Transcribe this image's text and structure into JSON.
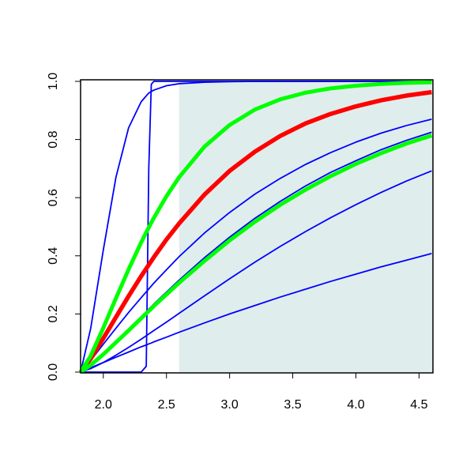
{
  "chart_data": {
    "type": "line",
    "x": [
      1.82,
      1.9,
      2.0,
      2.1,
      2.2,
      2.3,
      2.34,
      2.36,
      2.38,
      2.4,
      2.5,
      2.6,
      2.8,
      3.0,
      3.2,
      3.4,
      3.6,
      3.8,
      4.0,
      4.2,
      4.4,
      4.6
    ],
    "xlim": [
      1.82,
      4.61
    ],
    "ylim": [
      0,
      1
    ],
    "xticks": [
      {
        "value": 2.0,
        "label": "2.0"
      },
      2.5,
      {
        "value": 3.0,
        "label": "3.0"
      },
      3.5,
      {
        "value": 4.0,
        "label": "4.0"
      },
      4.5
    ],
    "yticks": [
      {
        "value": 0,
        "label": "0.0"
      },
      0.2,
      0.4,
      0.6,
      0.8,
      {
        "value": 1,
        "label": "1.0"
      }
    ],
    "shade_from": 2.6,
    "shade_color": "#e0eded",
    "series": [
      {
        "color": "#0000ff",
        "width": 1.8,
        "values": [
          0,
          0,
          0,
          0,
          0,
          0,
          0.02,
          0.7,
          0.99,
          1,
          1,
          1,
          1,
          1,
          1,
          1,
          1,
          1,
          1,
          1,
          1,
          1
        ]
      },
      {
        "color": "#0000ff",
        "width": 1.8,
        "values": [
          0,
          0.15,
          0.42,
          0.67,
          0.84,
          0.93,
          0.95,
          0.96,
          0.965,
          0.97,
          0.985,
          0.992,
          0.997,
          0.999,
          1,
          1,
          1,
          1,
          1,
          1,
          1,
          1
        ]
      },
      {
        "color": "#0000ff",
        "width": 1.8,
        "values": [
          0,
          0.04,
          0.096,
          0.151,
          0.205,
          0.256,
          0.276,
          0.286,
          0.296,
          0.306,
          0.352,
          0.397,
          0.478,
          0.549,
          0.612,
          0.666,
          0.714,
          0.755,
          0.791,
          0.822,
          0.848,
          0.87
        ]
      },
      {
        "color": "#0000ff",
        "width": 1.8,
        "values": [
          0,
          0.024,
          0.063,
          0.105,
          0.148,
          0.191,
          0.208,
          0.217,
          0.225,
          0.234,
          0.275,
          0.316,
          0.393,
          0.464,
          0.529,
          0.587,
          0.64,
          0.687,
          0.727,
          0.765,
          0.797,
          0.825
        ]
      },
      {
        "color": "#0000ff",
        "width": 1.8,
        "values": [
          0,
          0.012,
          0.033,
          0.058,
          0.085,
          0.113,
          0.125,
          0.131,
          0.137,
          0.143,
          0.172,
          0.202,
          0.262,
          0.321,
          0.378,
          0.432,
          0.483,
          0.531,
          0.576,
          0.618,
          0.657,
          0.692
        ]
      },
      {
        "color": "#0000ff",
        "width": 1.8,
        "values": [
          0,
          0.015,
          0.033,
          0.051,
          0.069,
          0.087,
          0.093,
          0.097,
          0.1,
          0.104,
          0.12,
          0.137,
          0.169,
          0.2,
          0.229,
          0.258,
          0.285,
          0.312,
          0.337,
          0.362,
          0.385,
          0.408
        ]
      },
      {
        "color": "#ff0000",
        "width": 5.5,
        "values": [
          0,
          0.046,
          0.116,
          0.189,
          0.261,
          0.33,
          0.356,
          0.369,
          0.382,
          0.395,
          0.456,
          0.511,
          0.61,
          0.692,
          0.758,
          0.812,
          0.855,
          0.888,
          0.914,
          0.935,
          0.951,
          0.963
        ]
      },
      {
        "color": "#00ff00",
        "width": 5,
        "values": [
          0,
          0.024,
          0.061,
          0.102,
          0.143,
          0.185,
          0.202,
          0.21,
          0.218,
          0.227,
          0.267,
          0.307,
          0.382,
          0.453,
          0.517,
          0.575,
          0.627,
          0.674,
          0.716,
          0.753,
          0.786,
          0.814
        ]
      },
      {
        "color": "#00ff00",
        "width": 5,
        "values": [
          0,
          0.056,
          0.152,
          0.254,
          0.353,
          0.446,
          0.481,
          0.497,
          0.514,
          0.53,
          0.605,
          0.67,
          0.775,
          0.85,
          0.903,
          0.938,
          0.961,
          0.976,
          0.985,
          0.991,
          0.995,
          0.997
        ]
      }
    ]
  }
}
